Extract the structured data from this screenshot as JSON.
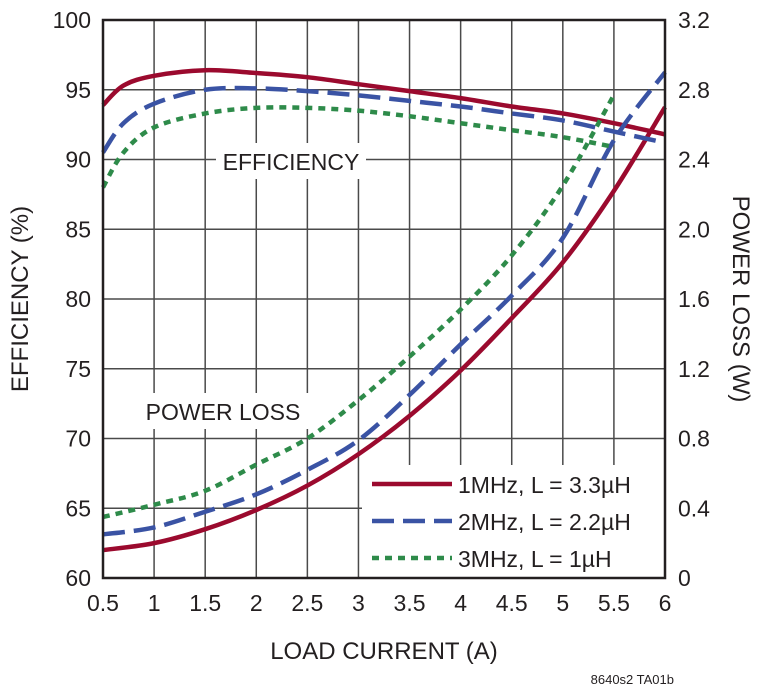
{
  "chart_data": {
    "type": "line",
    "title": "",
    "xlabel": "LOAD CURRENT (A)",
    "ylabel": "EFFICIENCY (%)",
    "y2label": "POWER LOSS (W)",
    "xlim": [
      0.5,
      6
    ],
    "ylim": [
      60,
      100
    ],
    "y2lim": [
      0,
      3.2
    ],
    "grid": true,
    "legend_position": "bottom-right",
    "x_ticks": [
      "0.5",
      "1",
      "1.5",
      "2",
      "2.5",
      "3",
      "3.5",
      "4",
      "4.5",
      "5",
      "5.5",
      "6"
    ],
    "y_ticks": [
      "60",
      "65",
      "70",
      "75",
      "80",
      "85",
      "90",
      "95",
      "100"
    ],
    "y2_ticks": [
      "0",
      "0.4",
      "0.8",
      "1.2",
      "1.6",
      "2.0",
      "2.4",
      "2.8",
      "3.2"
    ],
    "annotations": {
      "efficiency": "EFFICIENCY",
      "power_loss": "POWER LOSS"
    },
    "footnote": "8640s2 TA01b",
    "series": [
      {
        "name": "1MHz, L = 3.3µH",
        "color": "#9b0a2e",
        "style": "solid",
        "efficiency": {
          "x": [
            0.5,
            0.7,
            1,
            1.5,
            2,
            2.5,
            3,
            3.5,
            4,
            4.5,
            5,
            5.5,
            6
          ],
          "y": [
            93.9,
            95.3,
            96,
            96.4,
            96.2,
            95.9,
            95.4,
            94.9,
            94.4,
            93.8,
            93.3,
            92.6,
            91.8
          ]
        },
        "power_loss": {
          "x": [
            0.5,
            1,
            1.5,
            2,
            2.5,
            3,
            3.5,
            4,
            4.5,
            5,
            5.5,
            6
          ],
          "y": [
            0.16,
            0.2,
            0.28,
            0.39,
            0.53,
            0.71,
            0.93,
            1.19,
            1.49,
            1.81,
            2.22,
            2.7
          ]
        }
      },
      {
        "name": "2MHz, L = 2.2µH",
        "color": "#3a53a4",
        "style": "dashed",
        "efficiency": {
          "x": [
            0.5,
            0.7,
            1,
            1.5,
            2,
            2.5,
            3,
            3.5,
            4,
            4.5,
            5,
            5.5,
            6
          ],
          "y": [
            90.5,
            92.6,
            94,
            95,
            95.1,
            94.9,
            94.6,
            94.2,
            93.8,
            93.3,
            92.8,
            92,
            91.2
          ]
        },
        "power_loss": {
          "x": [
            0.5,
            1,
            1.5,
            2,
            2.5,
            3,
            3.5,
            4,
            4.5,
            5,
            5.5,
            6
          ],
          "y": [
            0.25,
            0.29,
            0.38,
            0.48,
            0.62,
            0.79,
            1.05,
            1.34,
            1.62,
            1.95,
            2.51,
            2.9
          ]
        }
      },
      {
        "name": "3MHz, L = 1µH",
        "color": "#2e8b4a",
        "style": "dotted",
        "efficiency": {
          "x": [
            0.5,
            0.7,
            1,
            1.5,
            2,
            2.5,
            3,
            3.5,
            4,
            4.5,
            5,
            5.5
          ],
          "y": [
            88,
            90.5,
            92.3,
            93.3,
            93.7,
            93.7,
            93.5,
            93.1,
            92.6,
            92.1,
            91.6,
            90.9
          ]
        },
        "power_loss": {
          "x": [
            0.5,
            1,
            1.5,
            2,
            2.5,
            3,
            3.5,
            4,
            4.5,
            5,
            5.5
          ],
          "y": [
            0.35,
            0.42,
            0.5,
            0.65,
            0.8,
            1.02,
            1.27,
            1.54,
            1.85,
            2.25,
            2.77
          ]
        }
      }
    ]
  }
}
